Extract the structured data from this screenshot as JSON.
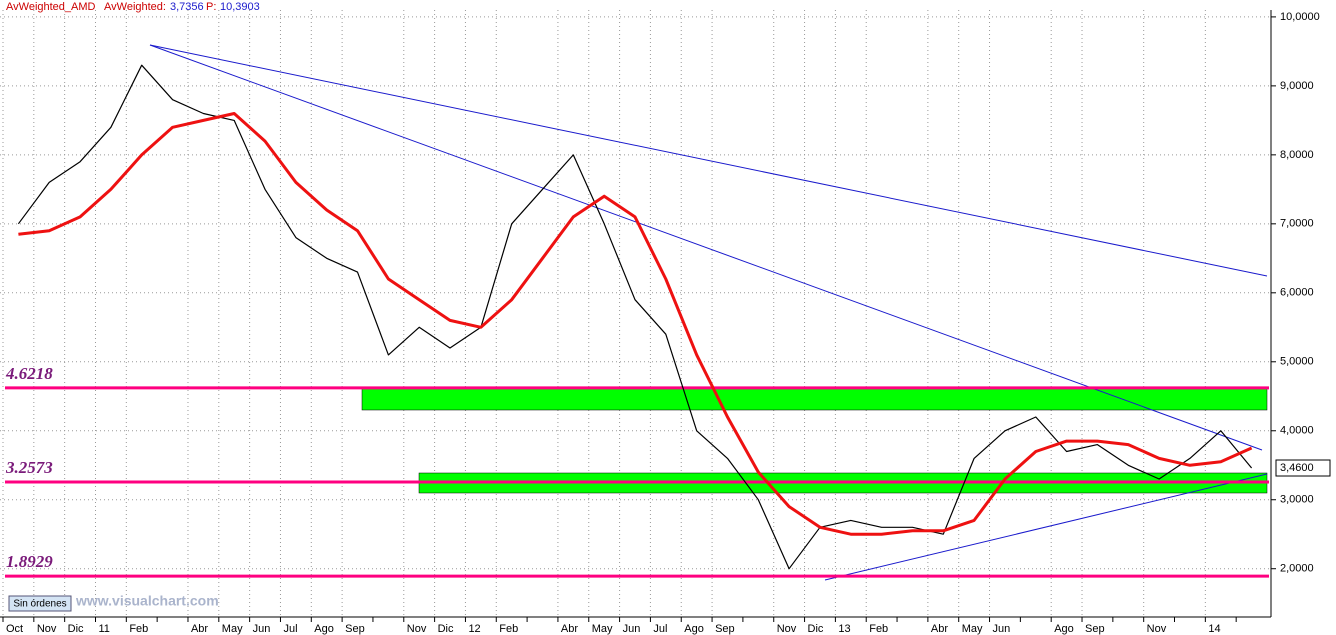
{
  "header": {
    "symbol": "AvWeighted_AMD",
    "indicator": "AvWeighted:",
    "indicator_value": "3,7356",
    "param": "P:",
    "param_value": "10,3903"
  },
  "footer": {
    "orders_button": "Sin órdenes",
    "watermark": "www.visualchart.com"
  },
  "chart_data": {
    "type": "line",
    "categories": [
      "Oct",
      "Nov",
      "Dic",
      "11",
      "Feb",
      null,
      "Abr",
      "May",
      "Jun",
      "Jul",
      "Ago",
      "Sep",
      null,
      "Nov",
      "Dic",
      "12",
      "Feb",
      null,
      "Abr",
      "May",
      "Jun",
      "Jul",
      "Ago",
      "Sep",
      null,
      "Nov",
      "Dic",
      "13",
      "Feb",
      null,
      "Abr",
      "May",
      "Jun",
      null,
      "Ago",
      "Sep",
      null,
      "Nov",
      null,
      "14",
      null
    ],
    "series": [
      {
        "name": "AMD",
        "color": "#000000",
        "values": [
          7.0,
          7.6,
          7.9,
          8.4,
          9.3,
          8.8,
          8.6,
          8.5,
          7.5,
          6.8,
          6.5,
          6.3,
          5.1,
          5.5,
          5.2,
          5.5,
          7.0,
          7.5,
          8.0,
          7.0,
          5.9,
          5.4,
          4.0,
          3.6,
          3.0,
          2.0,
          2.6,
          2.7,
          2.6,
          2.6,
          2.5,
          3.6,
          4.0,
          4.2,
          3.7,
          3.8,
          3.5,
          3.3,
          3.6,
          4.0,
          3.46
        ]
      },
      {
        "name": "AvWeighted",
        "color": "#ee1111",
        "values": [
          6.85,
          6.9,
          7.1,
          7.5,
          8.0,
          8.4,
          8.5,
          8.6,
          8.2,
          7.6,
          7.2,
          6.9,
          6.2,
          5.9,
          5.6,
          5.5,
          5.9,
          6.5,
          7.1,
          7.4,
          7.1,
          6.2,
          5.1,
          4.2,
          3.4,
          2.9,
          2.6,
          2.5,
          2.5,
          2.55,
          2.55,
          2.7,
          3.3,
          3.7,
          3.85,
          3.85,
          3.8,
          3.6,
          3.5,
          3.55,
          3.75
        ]
      }
    ],
    "levels": [
      4.6218,
      3.2573,
      1.8929
    ],
    "level_color": "#ff0080",
    "last_value": {
      "value": 3.46,
      "label": "3,4600"
    },
    "ylim": [
      1.3,
      10.1
    ],
    "yticks": [
      {
        "value": 2,
        "label": "2,0000"
      },
      {
        "value": 3,
        "label": "3,0000"
      },
      {
        "value": 4,
        "label": "4,0000"
      },
      {
        "value": 5,
        "label": "5,0000"
      },
      {
        "value": 6,
        "label": "6,0000"
      },
      {
        "value": 7,
        "label": "7,0000"
      },
      {
        "value": 8,
        "label": "8,0000"
      },
      {
        "value": 9,
        "label": "9,0000"
      },
      {
        "value": 10,
        "label": "10,0000"
      }
    ],
    "grid": true
  }
}
